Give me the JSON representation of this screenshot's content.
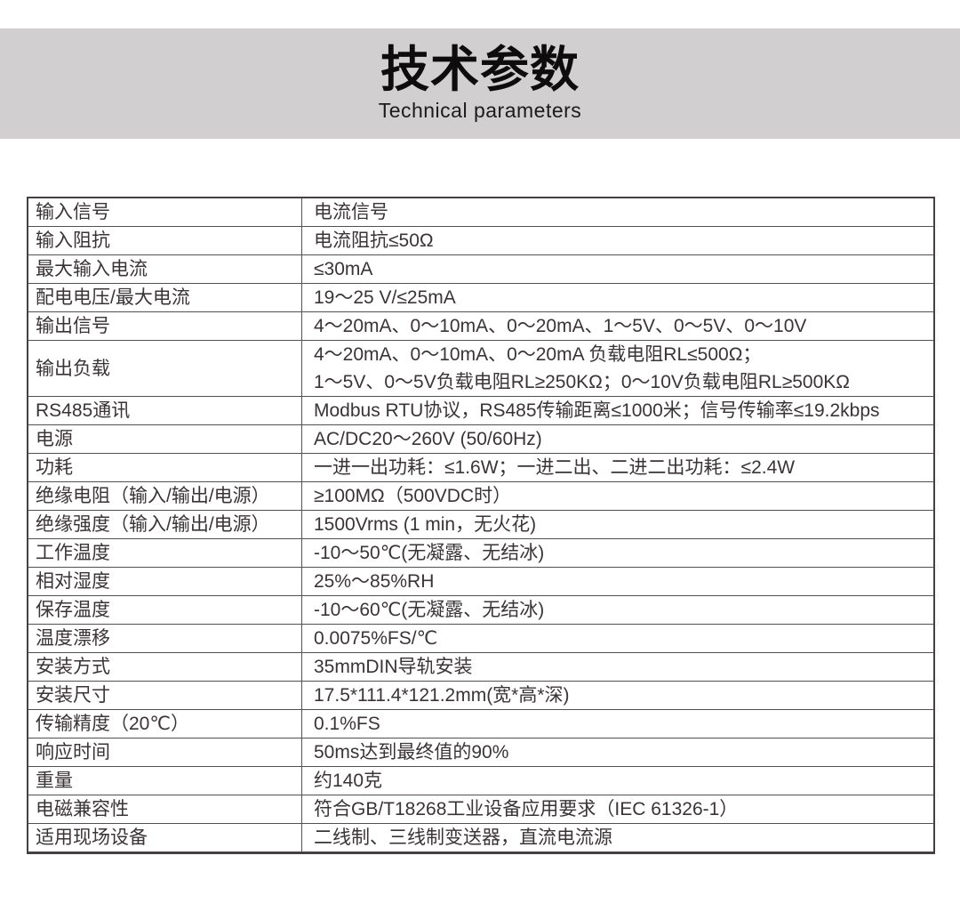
{
  "header": {
    "title": "技术参数",
    "subtitle": "Technical parameters",
    "band_color": "#d1cfd0"
  },
  "table": {
    "rows": [
      {
        "label": "输入信号",
        "value": "电流信号"
      },
      {
        "label": "输入阻抗",
        "value": "电流阻抗≤50Ω"
      },
      {
        "label": "最大输入电流",
        "value": "≤30mA"
      },
      {
        "label": "配电电压/最大电流",
        "value": "19～25 V/≤25mA"
      },
      {
        "label": "输出信号",
        "value": "4～20mA、0～10mA、0～20mA、1～5V、0～5V、0～10V"
      },
      {
        "label": "输出负载",
        "value": [
          "4～20mA、0～10mA、0～20mA 负载电阻RL≤500Ω；",
          "1～5V、0～5V负载电阻RL≥250KΩ；0～10V负载电阻RL≥500KΩ"
        ]
      },
      {
        "label": "RS485通讯",
        "value": "Modbus RTU协议，RS485传输距离≤1000米；信号传输率≤19.2kbps"
      },
      {
        "label": "电源",
        "value": "AC/DC20～260V (50/60Hz)"
      },
      {
        "label": "功耗",
        "value": "一进一出功耗：≤1.6W；一进二出、二进二出功耗：≤2.4W"
      },
      {
        "label": "绝缘电阻（输入/输出/电源）",
        "value": "≥100MΩ（500VDC时）"
      },
      {
        "label": "绝缘强度（输入/输出/电源）",
        "value": "1500Vrms (1 min，无火花)"
      },
      {
        "label": "工作温度",
        "value": "-10～50℃(无凝露、无结冰)"
      },
      {
        "label": "相对湿度",
        "value": "25%～85%RH"
      },
      {
        "label": "保存温度",
        "value": "-10～60℃(无凝露、无结冰)"
      },
      {
        "label": "温度漂移",
        "value": "0.0075%FS/℃"
      },
      {
        "label": "安装方式",
        "value": "35mmDIN导轨安装"
      },
      {
        "label": "安装尺寸",
        "value": "17.5*111.4*121.2mm(宽*高*深)"
      },
      {
        "label": "传输精度（20℃）",
        "value": "0.1%FS"
      },
      {
        "label": "响应时间",
        "value": "50ms达到最终值的90%"
      },
      {
        "label": "重量",
        "value": "约140克"
      },
      {
        "label": "电磁兼容性",
        "value": "符合GB/T18268工业设备应用要求（IEC 61326-1）"
      },
      {
        "label": "适用现场设备",
        "value": "二线制、三线制变送器，直流电流源"
      }
    ]
  }
}
